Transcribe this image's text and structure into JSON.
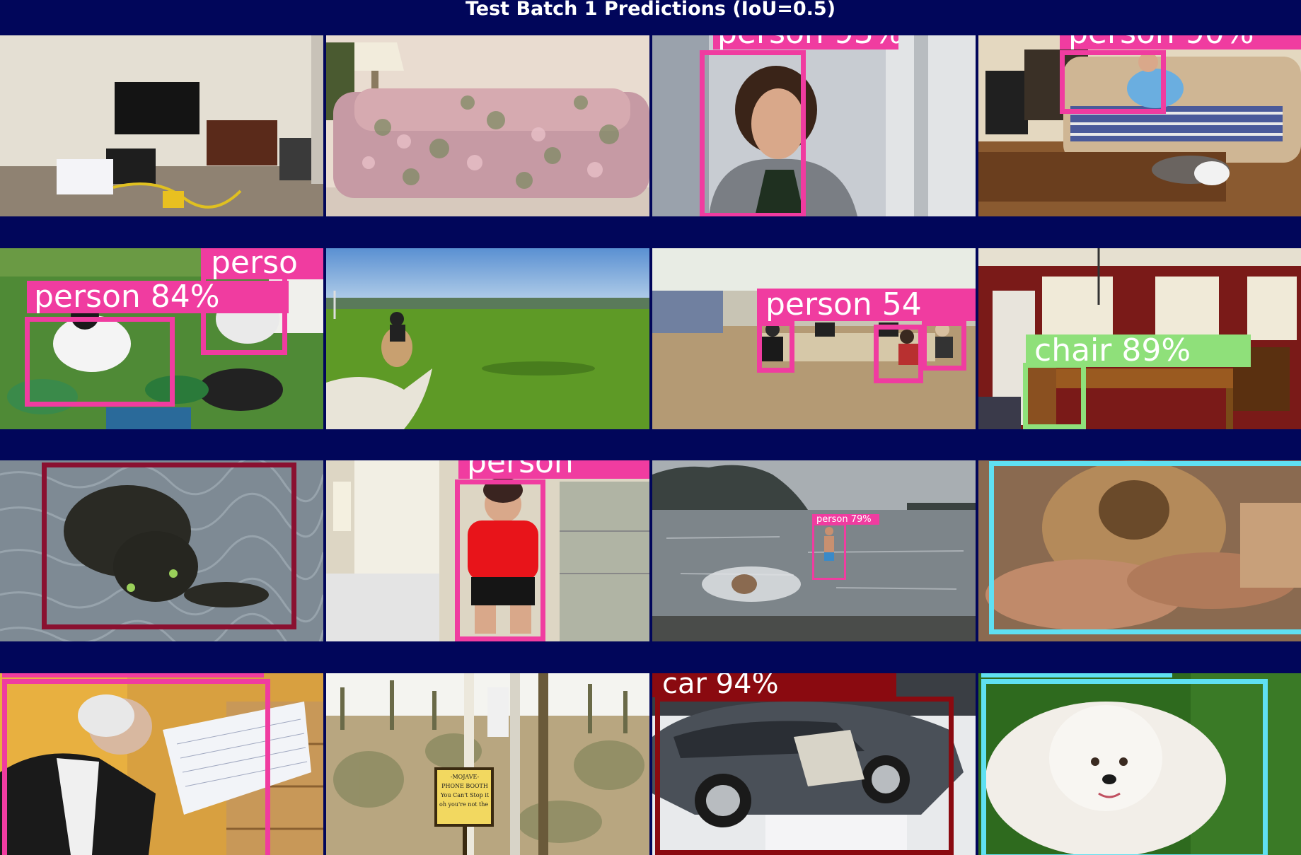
{
  "title": "Test Batch 1 Predictions (IoU=0.5)",
  "colors": {
    "background": "#01065a",
    "person": "#f03ca0",
    "chair": "#8fe07a",
    "cat": "#8a1030",
    "dog": "#5fe0f2",
    "car": "#8a0a10"
  },
  "tiles": [
    {
      "scene": "living room with television and cables on floor",
      "labels": []
    },
    {
      "scene": "floral patterned sofa",
      "labels": []
    },
    {
      "scene": "young man in grey jacket",
      "labels": [
        {
          "text": "person 93%",
          "class": "person"
        }
      ]
    },
    {
      "scene": "man on sofa with dog on floor",
      "labels": [
        {
          "text": "person 90%",
          "class": "person"
        }
      ]
    },
    {
      "scene": "students sitting on grass",
      "labels": [
        {
          "text": "perso",
          "class": "person"
        },
        {
          "text": "person 84%",
          "class": "person"
        }
      ]
    },
    {
      "scene": "horse riding across green field",
      "labels": []
    },
    {
      "scene": "office with computer desks",
      "labels": [
        {
          "text": "person 54",
          "class": "person"
        }
      ]
    },
    {
      "scene": "red dining room with table and chairs",
      "labels": [
        {
          "text": "chair 89%",
          "class": "chair"
        }
      ]
    },
    {
      "scene": "dark tabby cat on carpet",
      "labels": []
    },
    {
      "scene": "woman in red shirt sitting in office",
      "labels": [
        {
          "text": "person",
          "class": "person"
        }
      ]
    },
    {
      "scene": "person running into the sea",
      "labels": [
        {
          "text": "person 79%",
          "class": "person"
        }
      ]
    },
    {
      "scene": "fluffy dog being held",
      "labels": []
    },
    {
      "scene": "elderly man reading papers at microphone",
      "labels": []
    },
    {
      "scene": "desert with joshua trees and phone booth sign",
      "labels": [],
      "sign_text": "-MOJAVE-\nPHONE BOOTH\nYou Can't Stop it\noh you're not the kind for it"
    },
    {
      "scene": "silver concept car with open doors",
      "labels": [
        {
          "text": "car 94%",
          "class": "car"
        }
      ]
    },
    {
      "scene": "white fluffy dog on grass",
      "labels": []
    }
  ]
}
